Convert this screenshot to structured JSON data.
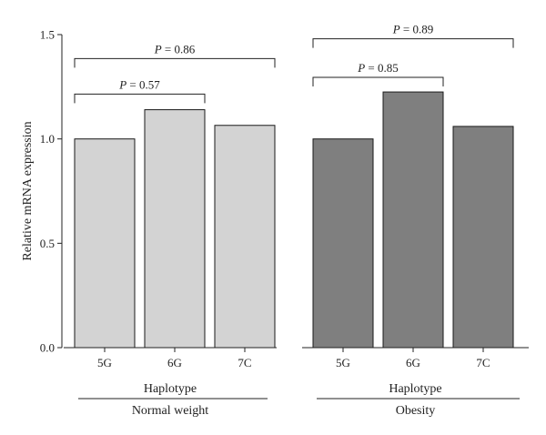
{
  "chart_data": {
    "type": "bar",
    "ylabel": "Relative mRNA expression",
    "ylim": [
      0,
      1.5
    ],
    "yticks": [
      "0.0",
      "0.5",
      "1.0",
      "1.5"
    ],
    "grid": false,
    "groups": [
      {
        "axis_label": "Haplotype",
        "group_label": "Normal weight",
        "color": "#d3d3d3",
        "categories": [
          "5G",
          "6G",
          "7C"
        ],
        "values": [
          1.0,
          1.14,
          1.065
        ],
        "comparisons": [
          {
            "from": "5G",
            "to": "7C",
            "p_prefix": "P",
            "p_value": " = 0.86",
            "level": 1.385
          },
          {
            "from": "5G",
            "to": "6G",
            "p_prefix": "P",
            "p_value": " = 0.57",
            "level": 1.215
          }
        ]
      },
      {
        "axis_label": "Haplotype",
        "group_label": "Obesity",
        "color": "#7f7f7f",
        "categories": [
          "5G",
          "6G",
          "7C"
        ],
        "values": [
          1.0,
          1.225,
          1.06
        ],
        "comparisons": [
          {
            "from": "5G",
            "to": "7C",
            "p_prefix": "P",
            "p_value": " = 0.89",
            "level": 1.48
          },
          {
            "from": "5G",
            "to": "6G",
            "p_prefix": "P",
            "p_value": " = 0.85",
            "level": 1.295
          }
        ]
      }
    ]
  }
}
